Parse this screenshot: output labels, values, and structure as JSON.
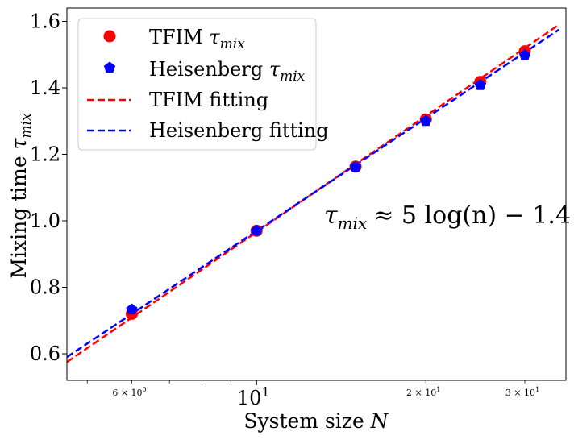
{
  "chart_data": {
    "type": "scatter",
    "x_scale": "log",
    "xlabel": "System size",
    "xlabel_var": "N",
    "ylabel": "Mixing time",
    "ylabel_var": "τ",
    "ylabel_sub": "mix",
    "xlim": [
      4.6,
      35.5
    ],
    "ylim": [
      0.52,
      1.64
    ],
    "y_ticks": [
      0.6,
      0.8,
      1.0,
      1.2,
      1.4,
      1.6
    ],
    "y_tick_labels": [
      "0.6",
      "0.8",
      "1.0",
      "1.2",
      "1.4",
      "1.6"
    ],
    "x_major_ticks": [
      {
        "value": 10,
        "base": "10",
        "exp": "1"
      }
    ],
    "x_minor_labeled_ticks": [
      {
        "value": 6,
        "mant": "6 × 10",
        "exp": "0"
      },
      {
        "value": 20,
        "mant": "2 × 10",
        "exp": "1"
      },
      {
        "value": 30,
        "mant": "3 × 10",
        "exp": "1"
      }
    ],
    "x_minor_ticks": [
      5,
      6,
      7,
      8,
      9,
      20,
      30
    ],
    "grid": false,
    "legend_placement": "top-left",
    "series": [
      {
        "name": "TFIM",
        "name_tau": "τ",
        "name_sub": "mix",
        "kind": "scatter",
        "marker": "circle",
        "color": "#ff0000",
        "x": [
          6,
          10,
          15,
          20,
          25,
          30
        ],
        "y": [
          0.72,
          0.97,
          1.163,
          1.305,
          1.418,
          1.51
        ]
      },
      {
        "name": "Heisenberg",
        "name_tau": "τ",
        "name_sub": "mix",
        "kind": "scatter",
        "marker": "pentagon",
        "color": "#0000ff",
        "x": [
          6,
          10,
          15,
          20,
          25,
          30
        ],
        "y": [
          0.733,
          0.97,
          1.162,
          1.3,
          1.408,
          1.498
        ]
      },
      {
        "name": "TFIM fitting",
        "kind": "line",
        "dash": true,
        "color": "#ff0000",
        "x": [
          4.6,
          34.5
        ],
        "y": [
          0.575,
          1.59
        ]
      },
      {
        "name": "Heisenberg fitting",
        "kind": "line",
        "dash": true,
        "color": "#0000ff",
        "x": [
          4.6,
          34.5
        ],
        "y": [
          0.59,
          1.575
        ]
      }
    ],
    "annotation": {
      "lhs_var": "τ",
      "lhs_sub": "mix",
      "rhs": "≈ 5 log(n) − 1.4"
    }
  }
}
